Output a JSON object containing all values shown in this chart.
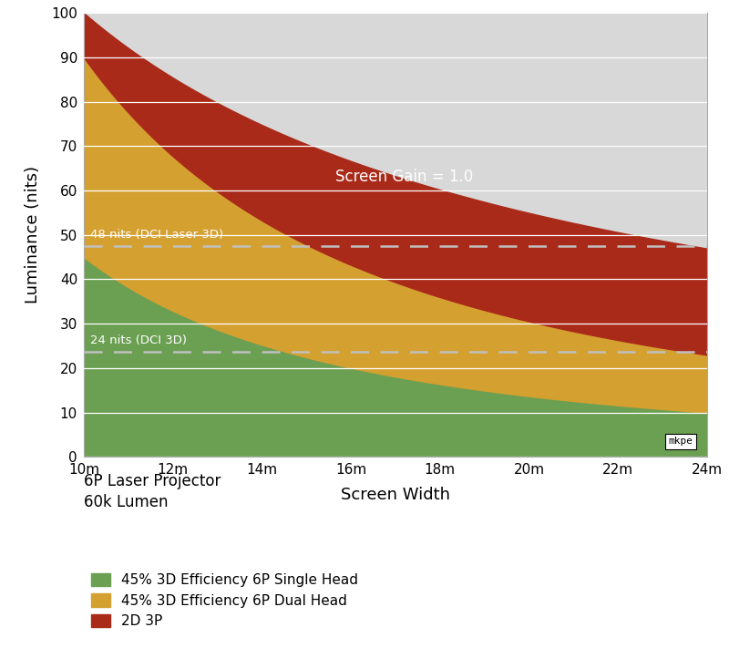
{
  "x_start": 10,
  "x_end": 24,
  "ylim": [
    0,
    100
  ],
  "xlim": [
    10,
    24
  ],
  "xticks": [
    10,
    12,
    14,
    16,
    18,
    20,
    22,
    24
  ],
  "xtick_labels": [
    "10m",
    "12m",
    "14m",
    "16m",
    "18m",
    "20m",
    "22m",
    "24m"
  ],
  "yticks": [
    0,
    10,
    20,
    30,
    40,
    50,
    60,
    70,
    80,
    90,
    100
  ],
  "xlabel": "Screen Width",
  "ylabel": "Luminance (nits)",
  "color_green": "#6b9f52",
  "color_gold": "#d4a030",
  "color_red": "#aa2a1a",
  "color_bg": "#d8d8d8",
  "color_dashed": "#c0c0c0",
  "dci_laser_3d": 47.5,
  "dci_3d": 23.75,
  "label_laser3d": "48 nits (DCI Laser 3D)",
  "label_dci3d": "24 nits (DCI 3D)",
  "screen_gain_label": "Screen Gain = 1.0",
  "legend1": "45% 3D Efficiency 6P Single Head",
  "legend2": "45% 3D Efficiency 6P Dual Head",
  "legend3": "2D 3P",
  "subtitle1": "6P Laser Projector",
  "subtitle2": "60k Lumen",
  "mkpe_label": "mkpe",
  "K_2d": 10000.0,
  "K_dual": 4750.0,
  "K_single": 2375.0,
  "power": 2.0
}
